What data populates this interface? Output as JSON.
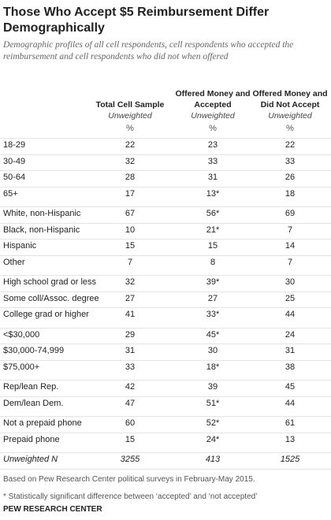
{
  "header": {
    "title": "Those Who Accept $5 Reimbursement Differ Demographically",
    "subtitle": "Demographic profiles of all cell respondents, cell respondents who accepted the reimbursement and cell respondents who did not when offered"
  },
  "table": {
    "columns": [
      {
        "name": "Total Cell Sample",
        "sub": "Unweighted"
      },
      {
        "name": "Offered Money and Accepted",
        "sub": "Unweighted"
      },
      {
        "name": "Offered Money and Did Not Accept",
        "sub": "Unweighted"
      }
    ],
    "unit": "%",
    "groups": [
      [
        [
          "18-29",
          "22",
          "23",
          "22"
        ],
        [
          "30-49",
          "32",
          "33",
          "33"
        ],
        [
          "50-64",
          "28",
          "31",
          "26"
        ],
        [
          "65+",
          "17",
          "13*",
          "18"
        ]
      ],
      [
        [
          "White, non-Hispanic",
          "67",
          "56*",
          "69"
        ],
        [
          "Black, non-Hispanic",
          "10",
          "21*",
          "7"
        ],
        [
          "Hispanic",
          "15",
          "15",
          "14"
        ],
        [
          "Other",
          "7",
          "8",
          "7"
        ]
      ],
      [
        [
          "High school grad or less",
          "32",
          "39*",
          "30"
        ],
        [
          "Some coll/Assoc. degree",
          "27",
          "27",
          "25"
        ],
        [
          "College grad or higher",
          "41",
          "33*",
          "44"
        ]
      ],
      [
        [
          "<$30,000",
          "29",
          "45*",
          "24"
        ],
        [
          "$30,000-74,999",
          "31",
          "30",
          "31"
        ],
        [
          "$75,000+",
          "33",
          "18*",
          "38"
        ]
      ],
      [
        [
          "Rep/lean Rep.",
          "42",
          "39",
          "45"
        ],
        [
          "Dem/lean Dem.",
          "47",
          "51*",
          "44"
        ]
      ],
      [
        [
          "Not a prepaid phone",
          "60",
          "52*",
          "61"
        ],
        [
          "Prepaid phone",
          "15",
          "24*",
          "13"
        ]
      ]
    ],
    "total": [
      "Unweighted N",
      "3255",
      "413",
      "1525"
    ]
  },
  "footer": {
    "source": "Based on Pew Research Center political surveys in February-May 2015.",
    "note": "* Statistically significant difference between ‘accepted’ and ‘not accepted’",
    "org": "PEW RESEARCH CENTER"
  }
}
